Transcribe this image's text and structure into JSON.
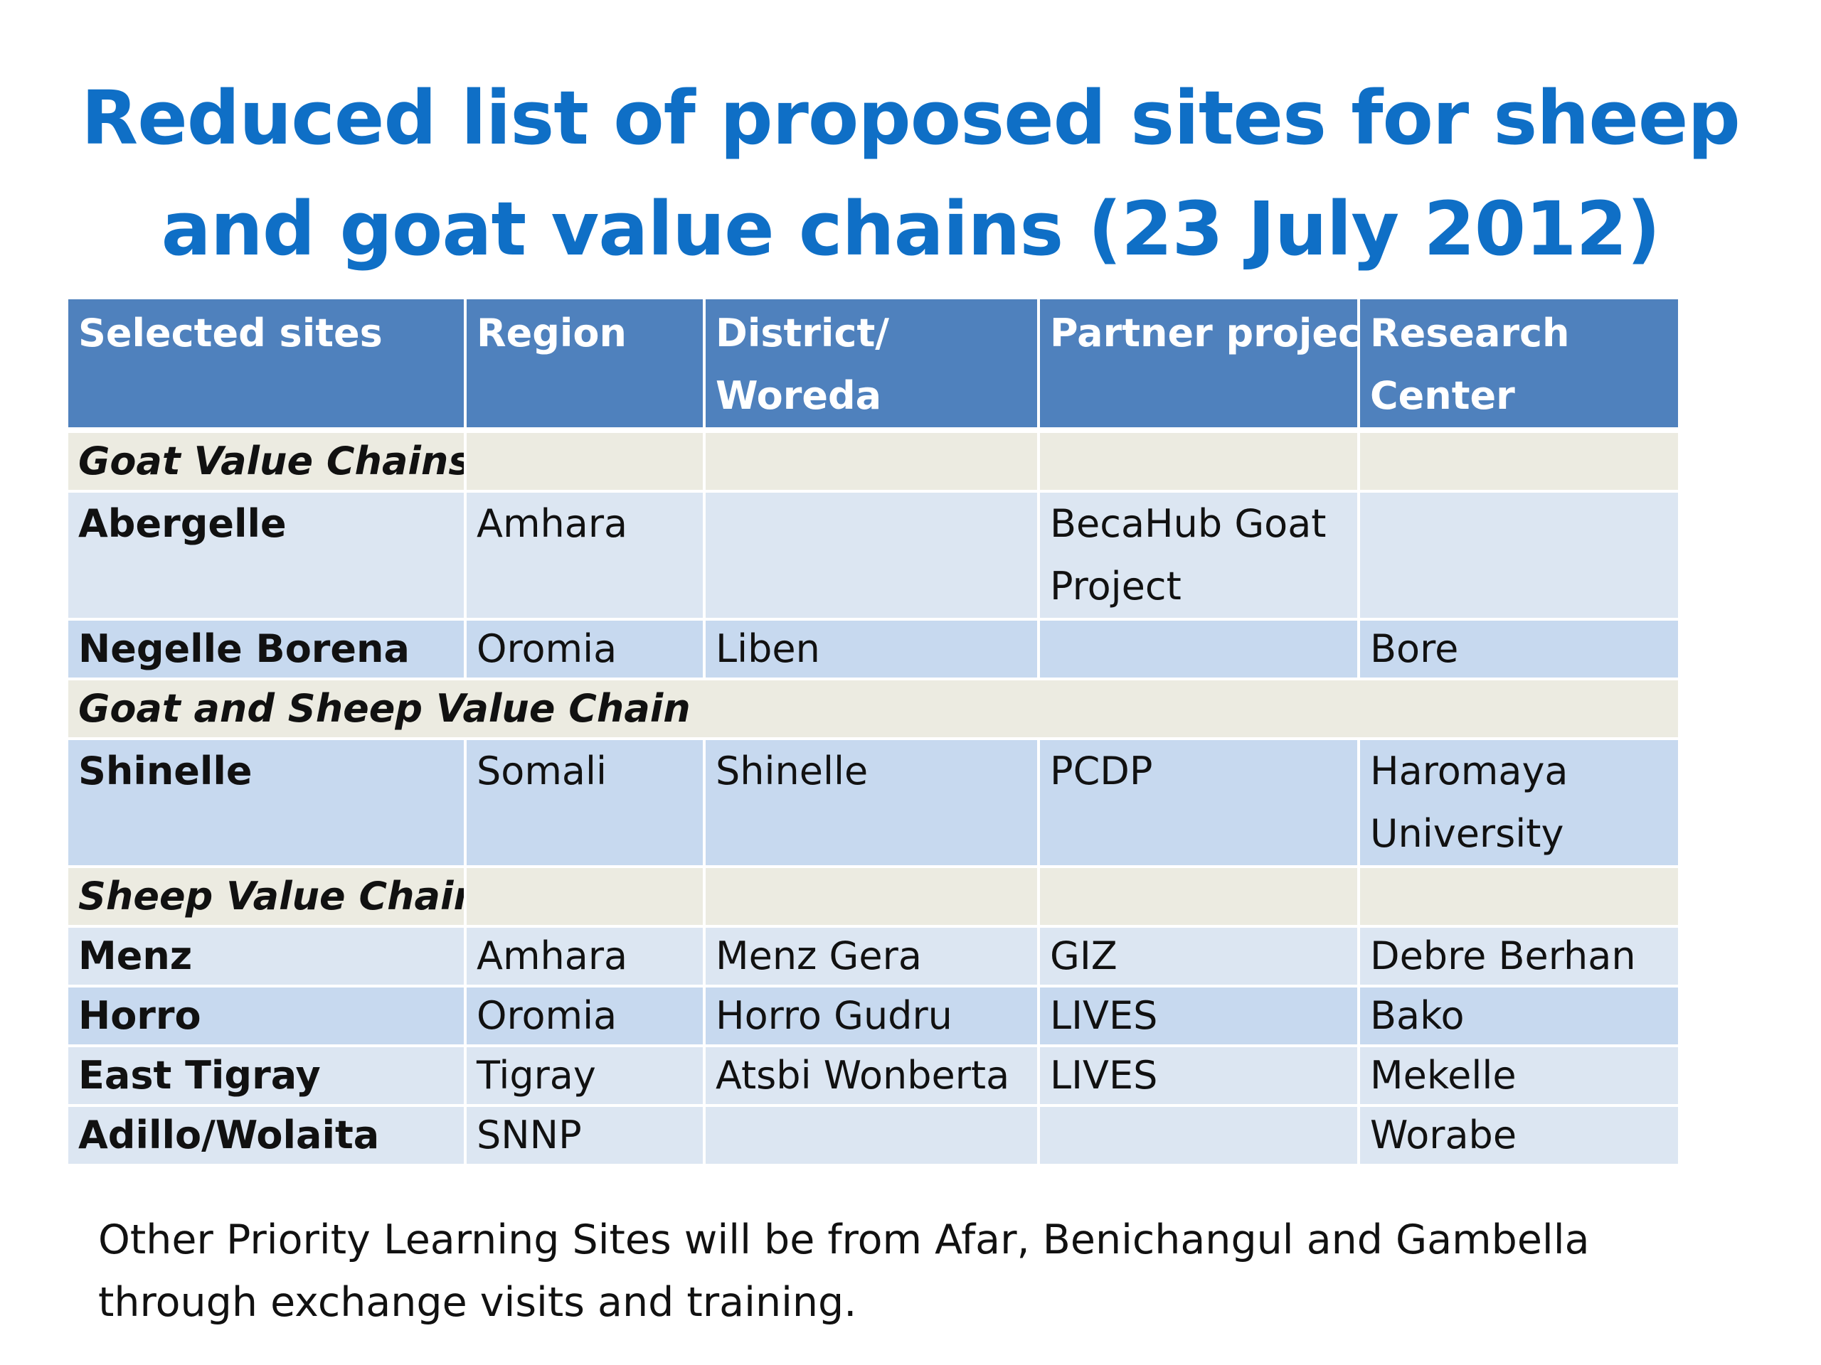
{
  "title": {
    "line1": "Reduced list of proposed sites for sheep",
    "line2": "and goat value chains (23 July 2012)"
  },
  "table": {
    "headers": {
      "col1": "Selected sites",
      "col2": "Region",
      "col3_line1": "District/",
      "col3_line2": "Woreda",
      "col4": "Partner project",
      "col5_line1": "Research",
      "col5_line2": "Center"
    },
    "sections": [
      {
        "label": "Goat Value Chains",
        "rows": [
          {
            "site": "Abergelle",
            "region": "Amhara",
            "district": "",
            "partner_line1": "BecaHub Goat",
            "partner_line2": "Project",
            "research_line1": "",
            "research_line2": ""
          },
          {
            "site": "Negelle Borena",
            "region": "Oromia",
            "district": "Liben",
            "partner_line1": "",
            "partner_line2": "",
            "research_line1": "Bore",
            "research_line2": ""
          }
        ]
      },
      {
        "label": "Goat and Sheep Value Chain",
        "rows": [
          {
            "site": "Shinelle",
            "region": "Somali",
            "district": "Shinelle",
            "partner_line1": "PCDP",
            "partner_line2": "",
            "research_line1": "Haromaya",
            "research_line2": "University"
          }
        ]
      },
      {
        "label": "Sheep Value Chains",
        "rows": [
          {
            "site": "Menz",
            "region": "Amhara",
            "district": "Menz Gera",
            "partner_line1": "GIZ",
            "partner_line2": "",
            "research_line1": "Debre Berhan",
            "research_line2": ""
          },
          {
            "site": "Horro",
            "region": "Oromia",
            "district": "Horro Gudru",
            "partner_line1": "LIVES",
            "partner_line2": "",
            "research_line1": "Bako",
            "research_line2": ""
          },
          {
            "site": "East Tigray",
            "region": "Tigray",
            "district": "Atsbi Wonberta",
            "partner_line1": "LIVES",
            "partner_line2": "",
            "research_line1": "Mekelle",
            "research_line2": ""
          },
          {
            "site": "Adillo/Wolaita",
            "region": "SNNP",
            "district": "",
            "partner_line1": "",
            "partner_line2": "",
            "research_line1": "Worabe",
            "research_line2": ""
          }
        ]
      }
    ]
  },
  "footnote": {
    "line1": "Other Priority Learning Sites will be from Afar, Benichangul and Gambella",
    "line2": "through exchange visits and training."
  },
  "colors": {
    "title": "#0f6fc6",
    "header_bg": "#4f81bd",
    "section_bg": "#ecebe1",
    "row_light": "#dce6f2",
    "row_mid": "#c7d9ef"
  }
}
